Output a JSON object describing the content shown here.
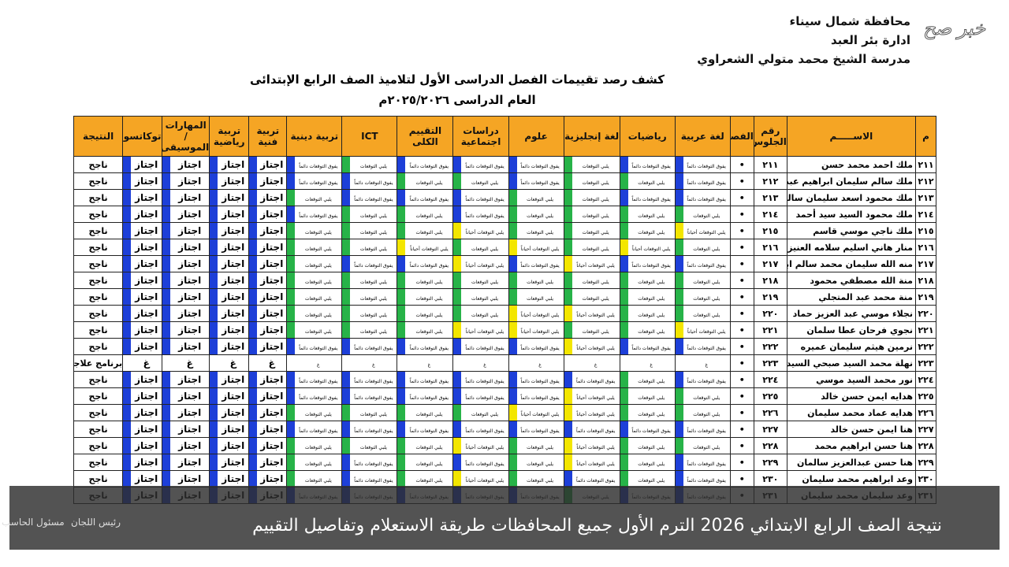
{
  "header": {
    "lines": [
      "محافظة شمال سيناء",
      "ادارة بئر العبد",
      "مدرسة الشيخ محمد متولي الشعراوي"
    ],
    "title": "كشف رصد تقييمات الفصل الدراسى الأول لتلاميذ الصف الرابع الإبتدائى",
    "subtitle": "العام الدراسى ٢٠٢٥/٢٠٢٦م",
    "watermark": "خبر صح"
  },
  "grade_levels": [
    {
      "label": "يفوق التوقعات دائماً",
      "color": "#1d3fd8"
    },
    {
      "label": "يلبي التوقعات",
      "color": "#27b348"
    },
    {
      "label": "يلبي التوقعات أحياناً",
      "color": "#f3e600"
    },
    {
      "label": "اجتاز",
      "color": "#1d3fd8"
    },
    {
      "label": "غ",
      "color": "#ffffff"
    }
  ],
  "table": {
    "columns": [
      "م",
      "الاســـــم",
      "رقم الجلوس",
      "الفصل",
      "لغة عربية",
      "رياضيات",
      "لغة إنجليزية",
      "علوم",
      "دراسات اجتماعية",
      "التقييم الكلى",
      "ICT",
      "تربية دينية",
      "تربية فنية",
      "تربية رياضية",
      "المهارات / الموسيقى",
      "توكاتسو",
      "النتيجة"
    ],
    "rows": [
      {
        "n": "٢١١",
        "name": "ملك احمد محمد حسن",
        "seat": "٢١١",
        "cls": "•",
        "grades": [
          "يفوق التوقعات دائماً",
          "يفوق التوقعات دائماً",
          "يلبي التوقعات",
          "يفوق التوقعات دائماً",
          "يفوق التوقعات دائماً",
          "يفوق التوقعات دائماً",
          "يلبي التوقعات",
          "يفوق التوقعات دائماً"
        ],
        "skills": [
          "اجتاز",
          "اجتاز",
          "اجتاز",
          "اجتاز"
        ],
        "result": "ناجح"
      },
      {
        "n": "٢١٢",
        "name": "ملك سالم سليمان ابراهيم عبدالجليل",
        "seat": "٢١٢",
        "cls": "•",
        "grades": [
          "يفوق التوقعات دائماً",
          "يلبي التوقعات",
          "يلبي التوقعات",
          "يفوق التوقعات دائماً",
          "يلبي التوقعات",
          "يلبي التوقعات",
          "يفوق التوقعات دائماً",
          "يفوق التوقعات دائماً"
        ],
        "skills": [
          "اجتاز",
          "اجتاز",
          "اجتاز",
          "اجتاز"
        ],
        "result": "ناجح"
      },
      {
        "n": "٢١٣",
        "name": "ملك محمود اسعد سليمان سالم",
        "seat": "٢١٣",
        "cls": "•",
        "grades": [
          "يفوق التوقعات دائماً",
          "يفوق التوقعات دائماً",
          "يلبي التوقعات",
          "يلبي التوقعات",
          "يفوق التوقعات دائماً",
          "يفوق التوقعات دائماً",
          "يفوق التوقعات دائماً",
          "يلبي التوقعات"
        ],
        "skills": [
          "اجتاز",
          "اجتاز",
          "اجتاز",
          "اجتاز"
        ],
        "result": "ناجح"
      },
      {
        "n": "٢١٤",
        "name": "ملك محمود السيد سيد أحمد",
        "seat": "٢١٤",
        "cls": "•",
        "grades": [
          "يلبي التوقعات",
          "يلبي التوقعات",
          "يلبي التوقعات",
          "يلبي التوقعات",
          "يفوق التوقعات دائماً",
          "يلبي التوقعات",
          "يلبي التوقعات",
          "يفوق التوقعات دائماً"
        ],
        "skills": [
          "اجتاز",
          "اجتاز",
          "اجتاز",
          "اجتاز"
        ],
        "result": "ناجح"
      },
      {
        "n": "٢١٥",
        "name": "ملك ناجي موسي قاسم",
        "seat": "٢١٥",
        "cls": "•",
        "grades": [
          "يلبي التوقعات أحياناً",
          "يلبي التوقعات",
          "يلبي التوقعات",
          "يلبي التوقعات",
          "يلبي التوقعات أحياناً",
          "يلبي التوقعات",
          "يلبي التوقعات",
          "يلبي التوقعات"
        ],
        "skills": [
          "اجتاز",
          "اجتاز",
          "اجتاز",
          "اجتاز"
        ],
        "result": "ناجح"
      },
      {
        "n": "٢١٦",
        "name": "منار هاني اسليم سلامه العنيزى",
        "seat": "٢١٦",
        "cls": "•",
        "grades": [
          "يلبي التوقعات",
          "يلبي التوقعات أحياناً",
          "يلبي التوقعات",
          "يلبي التوقعات أحياناً",
          "يلبي التوقعات",
          "يلبي التوقعات أحياناً",
          "يلبي التوقعات",
          "يلبي التوقعات"
        ],
        "skills": [
          "اجتاز",
          "اجتاز",
          "اجتاز",
          "اجتاز"
        ],
        "result": "ناجح"
      },
      {
        "n": "٢١٧",
        "name": "منه الله سليمان محمد سالم ابراهيم",
        "seat": "٢١٧",
        "cls": "•",
        "grades": [
          "يفوق التوقعات دائماً",
          "يفوق التوقعات دائماً",
          "يلبي التوقعات أحياناً",
          "يفوق التوقعات دائماً",
          "يلبي التوقعات أحياناً",
          "يفوق التوقعات دائماً",
          "يفوق التوقعات دائماً",
          "يلبي التوقعات"
        ],
        "skills": [
          "اجتاز",
          "اجتاز",
          "اجتاز",
          "اجتاز"
        ],
        "result": "ناجح"
      },
      {
        "n": "٢١٨",
        "name": "منة الله مصطفي محمود",
        "seat": "٢١٨",
        "cls": "•",
        "grades": [
          "يلبي التوقعات",
          "يلبي التوقعات",
          "يلبي التوقعات",
          "يلبي التوقعات",
          "يلبي التوقعات",
          "يلبي التوقعات",
          "يلبي التوقعات",
          "يلبي التوقعات"
        ],
        "skills": [
          "اجتاز",
          "اجتاز",
          "اجتاز",
          "اجتاز"
        ],
        "result": "ناجح"
      },
      {
        "n": "٢١٩",
        "name": "منة محمد عبد المتجلي",
        "seat": "٢١٩",
        "cls": "•",
        "grades": [
          "يلبي التوقعات",
          "يلبي التوقعات",
          "يلبي التوقعات",
          "يلبي التوقعات",
          "يلبي التوقعات",
          "يلبي التوقعات",
          "يلبي التوقعات",
          "يلبي التوقعات"
        ],
        "skills": [
          "اجتاز",
          "اجتاز",
          "اجتاز",
          "اجتاز"
        ],
        "result": "ناجح"
      },
      {
        "n": "٢٢٠",
        "name": "نجلاء موسي عبد العزيز حماد",
        "seat": "٢٢٠",
        "cls": "•",
        "grades": [
          "يلبي التوقعات",
          "يلبي التوقعات",
          "يلبي التوقعات أحياناً",
          "يلبي التوقعات أحياناً",
          "يلبي التوقعات",
          "يلبي التوقعات",
          "يلبي التوقعات",
          "يلبي التوقعات"
        ],
        "skills": [
          "اجتاز",
          "اجتاز",
          "اجتاز",
          "اجتاز"
        ],
        "result": "ناجح"
      },
      {
        "n": "٢٢١",
        "name": "نجوي فرحان عطا سلمان",
        "seat": "٢٢١",
        "cls": "•",
        "grades": [
          "يلبي التوقعات أحياناً",
          "يلبي التوقعات",
          "يلبي التوقعات",
          "يلبي التوقعات أحياناً",
          "يلبي التوقعات أحياناً",
          "يلبي التوقعات",
          "يلبي التوقعات",
          "يلبي التوقعات"
        ],
        "skills": [
          "اجتاز",
          "اجتاز",
          "اجتاز",
          "اجتاز"
        ],
        "result": "ناجح"
      },
      {
        "n": "٢٢٢",
        "name": "نرمين هيثم سليمان عميره",
        "seat": "٢٢٢",
        "cls": "•",
        "grades": [
          "يفوق التوقعات دائماً",
          "يفوق التوقعات دائماً",
          "يلبي التوقعات أحياناً",
          "يفوق التوقعات دائماً",
          "يفوق التوقعات دائماً",
          "يفوق التوقعات دائماً",
          "يفوق التوقعات دائماً",
          "يفوق التوقعات دائماً"
        ],
        "skills": [
          "اجتاز",
          "اجتاز",
          "اجتاز",
          "اجتاز"
        ],
        "result": "ناجح"
      },
      {
        "n": "٢٢٣",
        "name": "نهلة محمد السيد صبحي السيد",
        "seat": "٢٢٣",
        "cls": "•",
        "grades": [
          "غ",
          "غ",
          "غ",
          "غ",
          "غ",
          "غ",
          "غ",
          "غ"
        ],
        "skills": [
          "غ",
          "غ",
          "غ",
          "غ"
        ],
        "result": "برنامج علاجي"
      },
      {
        "n": "٢٢٤",
        "name": "نور محمد السيد موسي",
        "seat": "٢٢٤",
        "cls": "•",
        "grades": [
          "يفوق التوقعات دائماً",
          "يلبي التوقعات",
          "يفوق التوقعات دائماً",
          "يفوق التوقعات دائماً",
          "يفوق التوقعات دائماً",
          "يفوق التوقعات دائماً",
          "يفوق التوقعات دائماً",
          "يفوق التوقعات دائماً"
        ],
        "skills": [
          "اجتاز",
          "اجتاز",
          "اجتاز",
          "اجتاز"
        ],
        "result": "ناجح"
      },
      {
        "n": "٢٢٥",
        "name": "هدايه ايمن حسن خالد",
        "seat": "٢٢٥",
        "cls": "•",
        "grades": [
          "يلبي التوقعات",
          "يلبي التوقعات",
          "يلبي التوقعات أحياناً",
          "يفوق التوقعات دائماً",
          "يفوق التوقعات دائماً",
          "يفوق التوقعات دائماً",
          "يفوق التوقعات دائماً",
          "يفوق التوقعات دائماً"
        ],
        "skills": [
          "اجتاز",
          "اجتاز",
          "اجتاز",
          "اجتاز"
        ],
        "result": "ناجح"
      },
      {
        "n": "٢٢٦",
        "name": "هدايه عماد محمد سليمان",
        "seat": "٢٢٦",
        "cls": "•",
        "grades": [
          "يلبي التوقعات",
          "يلبي التوقعات",
          "يلبي التوقعات أحياناً",
          "يلبي التوقعات أحياناً",
          "يلبي التوقعات",
          "يلبي التوقعات",
          "يلبي التوقعات",
          "يلبي التوقعات"
        ],
        "skills": [
          "اجتاز",
          "اجتاز",
          "اجتاز",
          "اجتاز"
        ],
        "result": "ناجح"
      },
      {
        "n": "٢٢٧",
        "name": "هنا ايمن حسن خالد",
        "seat": "٢٢٧",
        "cls": "•",
        "grades": [
          "يفوق التوقعات دائماً",
          "يفوق التوقعات دائماً",
          "يفوق التوقعات دائماً",
          "يفوق التوقعات دائماً",
          "يفوق التوقعات دائماً",
          "يفوق التوقعات دائماً",
          "يفوق التوقعات دائماً",
          "يفوق التوقعات دائماً"
        ],
        "skills": [
          "اجتاز",
          "اجتاز",
          "اجتاز",
          "اجتاز"
        ],
        "result": "ناجح"
      },
      {
        "n": "٢٢٨",
        "name": "هنا حسن ابراهيم محمد",
        "seat": "٢٢٨",
        "cls": "•",
        "grades": [
          "يلبي التوقعات",
          "يلبي التوقعات",
          "يلبي التوقعات أحياناً",
          "يلبي التوقعات",
          "يلبي التوقعات أحياناً",
          "يلبي التوقعات",
          "يلبي التوقعات",
          "يلبي التوقعات"
        ],
        "skills": [
          "اجتاز",
          "اجتاز",
          "اجتاز",
          "اجتاز"
        ],
        "result": "ناجح"
      },
      {
        "n": "٢٢٩",
        "name": "هنا حسن عبدالعزيز سالمان",
        "seat": "٢٢٩",
        "cls": "•",
        "grades": [
          "يفوق التوقعات دائماً",
          "يلبي التوقعات",
          "يلبي التوقعات أحياناً",
          "يلبي التوقعات",
          "يفوق التوقعات دائماً",
          "يلبي التوقعات",
          "يفوق التوقعات دائماً",
          "يلبي التوقعات"
        ],
        "skills": [
          "اجتاز",
          "اجتاز",
          "اجتاز",
          "اجتاز"
        ],
        "result": "ناجح"
      },
      {
        "n": "٢٣٠",
        "name": "وعد ابراهيم محمد سليمان",
        "seat": "٢٣٠",
        "cls": "•",
        "grades": [
          "يفوق التوقعات دائماً",
          "يلبي التوقعات",
          "يفوق التوقعات دائماً",
          "يلبي التوقعات",
          "يلبي التوقعات أحياناً",
          "يلبي التوقعات",
          "يفوق التوقعات دائماً",
          "يلبي التوقعات"
        ],
        "skills": [
          "اجتاز",
          "اجتاز",
          "اجتاز",
          "اجتاز"
        ],
        "result": "ناجح"
      },
      {
        "n": "٢٣١",
        "name": "وعد سليمان محمد سليمان",
        "seat": "٢٣١",
        "cls": "•",
        "grades": [
          "يفوق التوقعات دائماً",
          "يفوق التوقعات دائماً",
          "يلبي التوقعات",
          "يفوق التوقعات دائماً",
          "يفوق التوقعات دائماً",
          "يفوق التوقعات دائماً",
          "يفوق التوقعات دائماً",
          "يفوق التوقعات دائماً"
        ],
        "skills": [
          "اجتاز",
          "اجتاز",
          "اجتاز",
          "اجتاز"
        ],
        "result": "ناجح"
      }
    ]
  },
  "footer": [
    "مسئول الحاسب",
    "رئيس اللجان"
  ],
  "caption": "نتيجة الصف الرابع الابتدائي 2026 الترم الأول جميع المحافظات طريقة الاستعلام وتفاصيل التقييم"
}
